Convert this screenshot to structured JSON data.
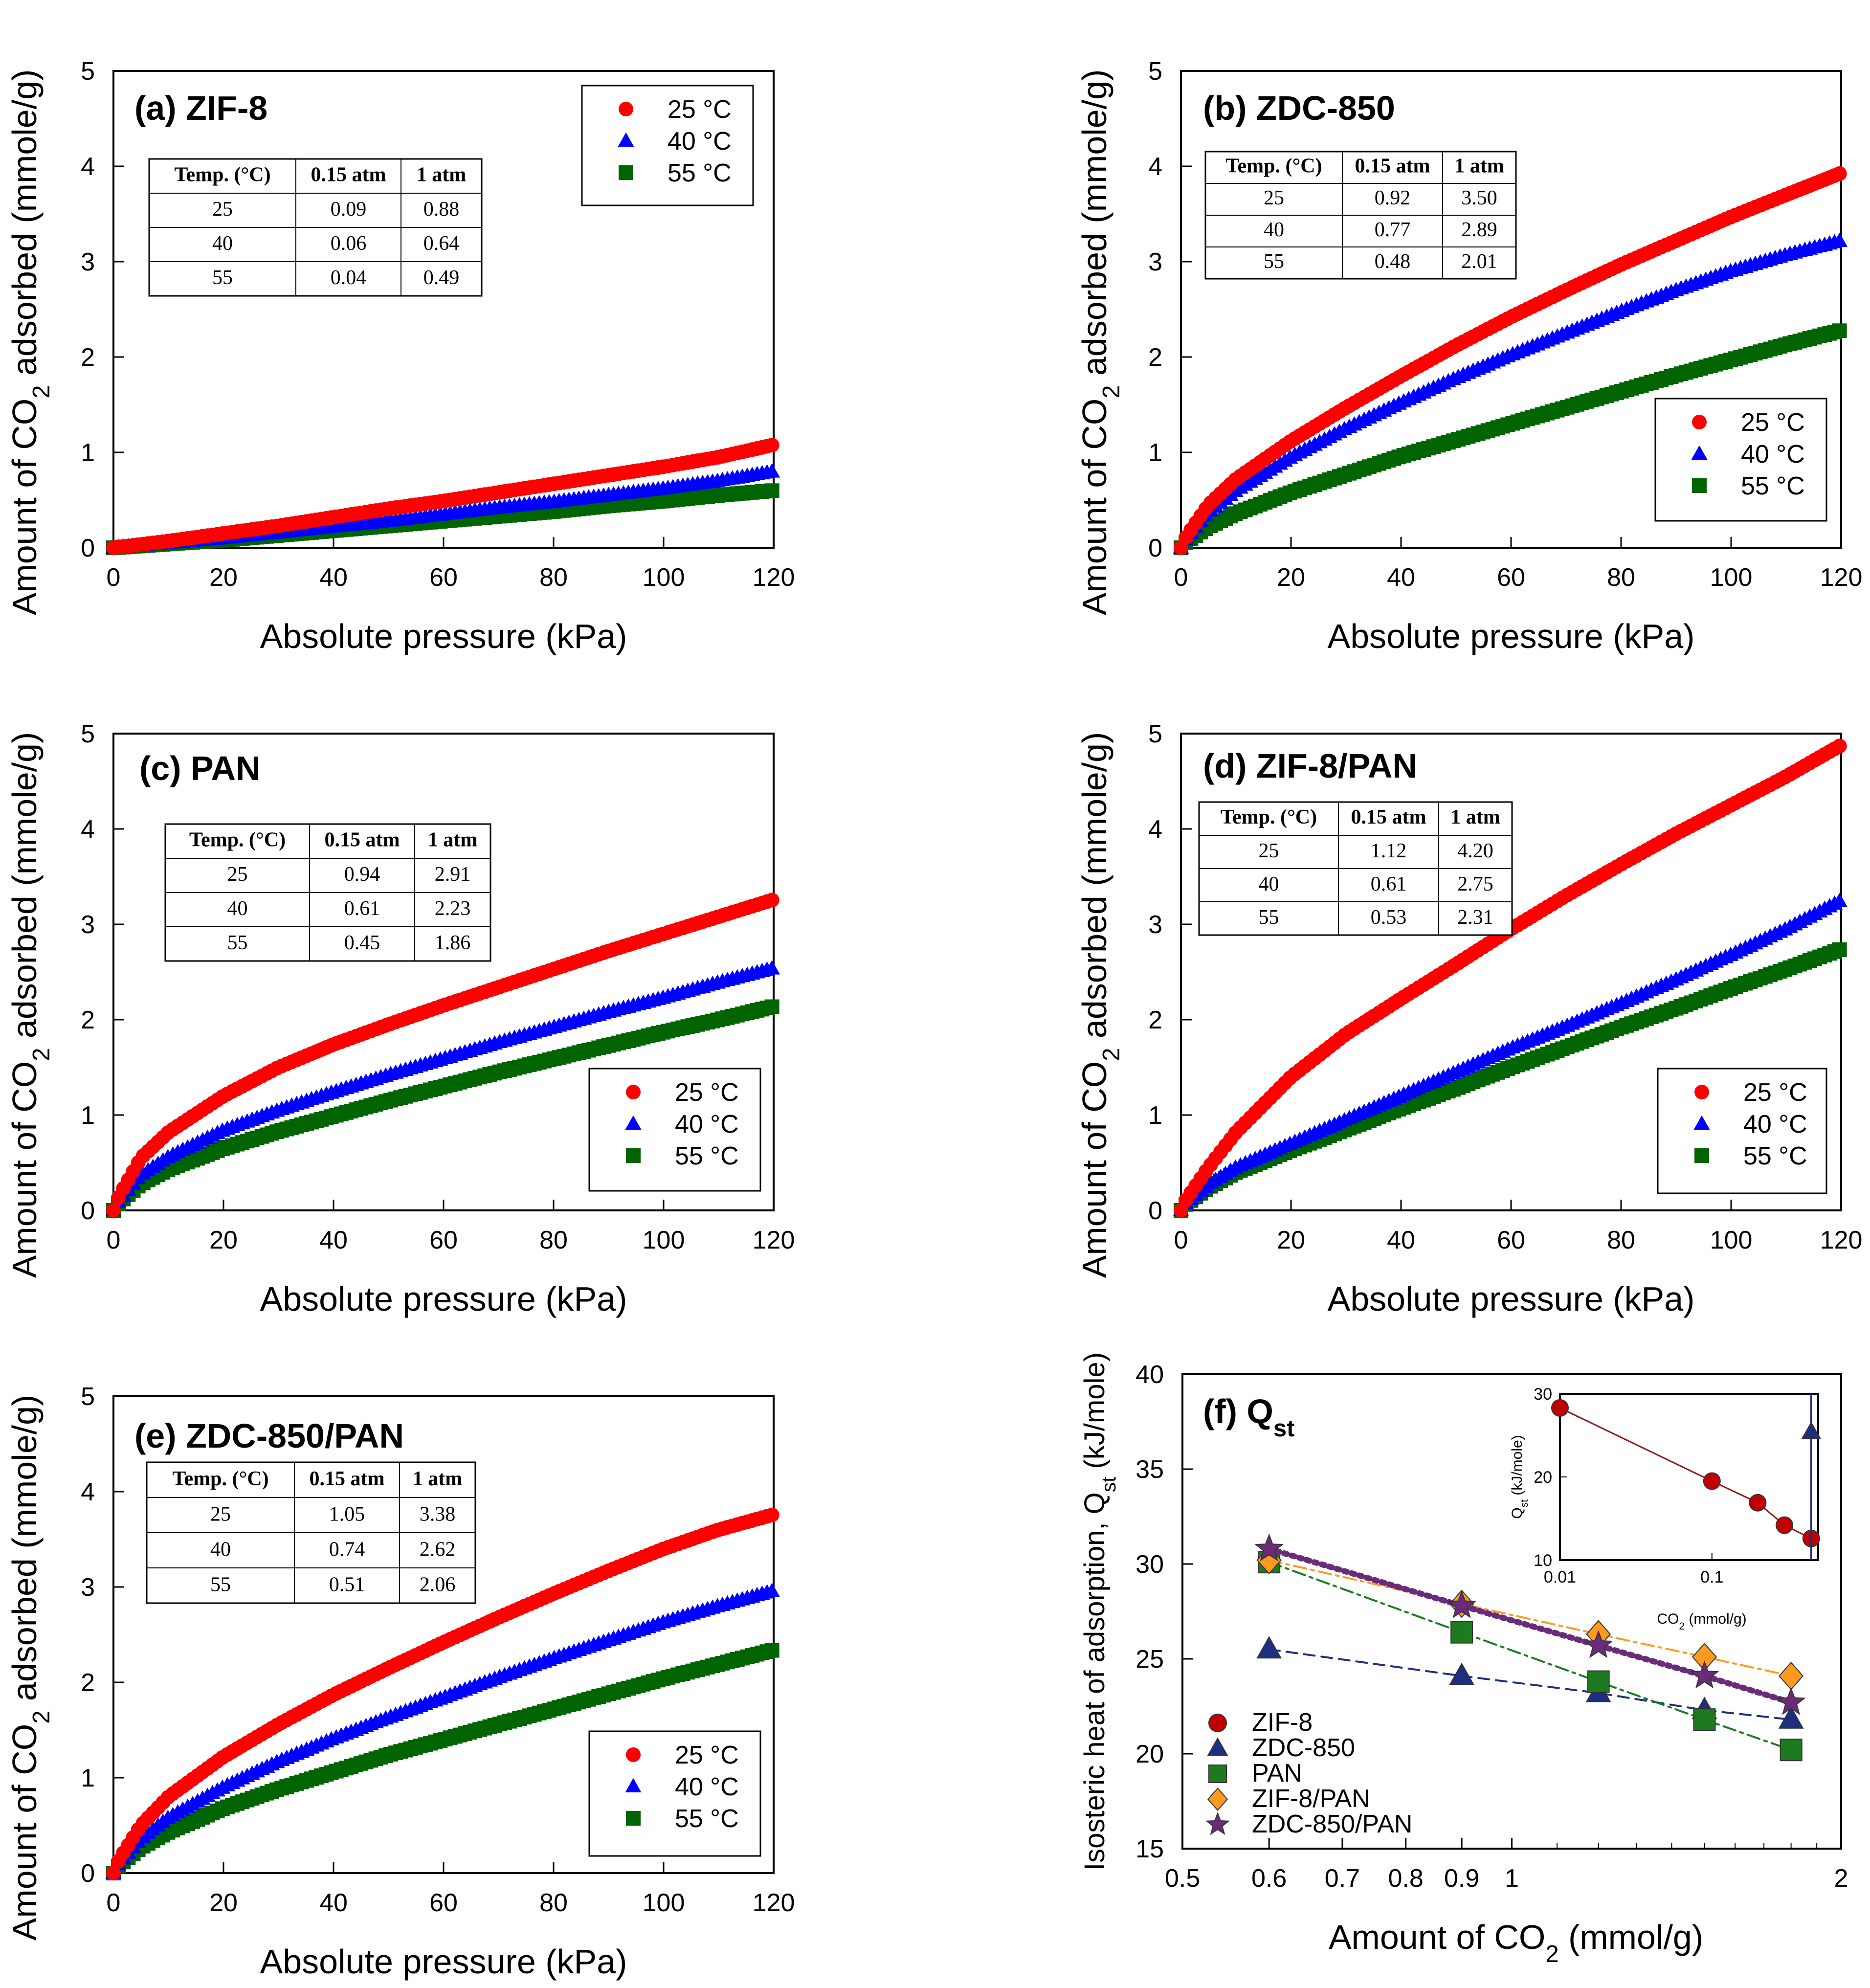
{
  "figure": {
    "legend_labels": [
      "25 °C",
      "40 °C",
      "55 °C"
    ],
    "colors": {
      "c25": "#ff0000",
      "c40": "#0000ff",
      "c55": "#006400"
    },
    "table_headers": [
      "Temp. (°C)",
      "0.15 atm",
      "1 atm"
    ],
    "x_ticks": [
      "0",
      "20",
      "40",
      "60",
      "80",
      "100",
      "120"
    ],
    "y_ticks": [
      "0",
      "1",
      "2",
      "3",
      "4",
      "5"
    ],
    "xlabel": "Absolute pressure (kPa)",
    "ylabel": "Amount of CO2 adsorbed (mmole/g)"
  },
  "chart_data": [
    {
      "id": "a",
      "type": "scatter",
      "title": "(a) ZIF-8",
      "xlabel": "Absolute pressure (kPa)",
      "ylabel": "Amount of CO2 adsorbed (mmole/g)",
      "xlim": [
        0,
        120
      ],
      "ylim": [
        0,
        5
      ],
      "legend_position": "top-right",
      "series": [
        {
          "name": "25 °C",
          "marker": "circle",
          "color": "#ff0000",
          "x": [
            0,
            10,
            20,
            30,
            40,
            50,
            60,
            70,
            80,
            90,
            100,
            110,
            120
          ],
          "y": [
            0,
            0.07,
            0.15,
            0.23,
            0.32,
            0.41,
            0.49,
            0.58,
            0.67,
            0.76,
            0.85,
            0.95,
            1.08
          ]
        },
        {
          "name": "40 °C",
          "marker": "triangle",
          "color": "#0000ff",
          "x": [
            0,
            10,
            20,
            30,
            40,
            50,
            60,
            70,
            80,
            90,
            100,
            110,
            120
          ],
          "y": [
            0,
            0.05,
            0.1,
            0.16,
            0.22,
            0.28,
            0.35,
            0.42,
            0.48,
            0.55,
            0.62,
            0.7,
            0.8
          ]
        },
        {
          "name": "55 °C",
          "marker": "square",
          "color": "#006400",
          "x": [
            0,
            10,
            20,
            30,
            40,
            50,
            60,
            70,
            80,
            90,
            100,
            110,
            120
          ],
          "y": [
            0,
            0.04,
            0.08,
            0.13,
            0.18,
            0.23,
            0.28,
            0.33,
            0.38,
            0.44,
            0.49,
            0.55,
            0.6
          ]
        }
      ],
      "table": [
        [
          "25",
          "0.09",
          "0.88"
        ],
        [
          "40",
          "0.06",
          "0.64"
        ],
        [
          "55",
          "0.04",
          "0.49"
        ]
      ]
    },
    {
      "id": "b",
      "type": "scatter",
      "title": "(b) ZDC-850",
      "xlabel": "Absolute pressure (kPa)",
      "ylabel": "Amount of CO2 adsorbed (mmole/g)",
      "xlim": [
        0,
        120
      ],
      "ylim": [
        0,
        5
      ],
      "legend_position": "bottom-right",
      "series": [
        {
          "name": "25 °C",
          "marker": "circle",
          "color": "#ff0000",
          "x": [
            0,
            1,
            5,
            10,
            20,
            30,
            40,
            50,
            60,
            70,
            80,
            90,
            100,
            110,
            120
          ],
          "y": [
            0,
            0.12,
            0.45,
            0.72,
            1.12,
            1.47,
            1.8,
            2.12,
            2.42,
            2.7,
            2.97,
            3.22,
            3.47,
            3.7,
            3.93
          ]
        },
        {
          "name": "40 °C",
          "marker": "triangle",
          "color": "#0000ff",
          "x": [
            0,
            1,
            5,
            10,
            20,
            30,
            40,
            50,
            60,
            70,
            80,
            90,
            100,
            110,
            120
          ],
          "y": [
            0,
            0.1,
            0.37,
            0.6,
            0.95,
            1.25,
            1.52,
            1.78,
            2.02,
            2.25,
            2.48,
            2.7,
            2.9,
            3.07,
            3.22
          ]
        },
        {
          "name": "55 °C",
          "marker": "square",
          "color": "#006400",
          "x": [
            0,
            1,
            5,
            10,
            20,
            30,
            40,
            50,
            60,
            70,
            80,
            90,
            100,
            110,
            120
          ],
          "y": [
            0,
            0.06,
            0.22,
            0.36,
            0.58,
            0.77,
            0.96,
            1.13,
            1.3,
            1.47,
            1.64,
            1.81,
            1.97,
            2.13,
            2.28
          ]
        }
      ],
      "table": [
        [
          "25",
          "0.92",
          "3.50"
        ],
        [
          "40",
          "0.77",
          "2.89"
        ],
        [
          "55",
          "0.48",
          "2.01"
        ]
      ]
    },
    {
      "id": "c",
      "type": "scatter",
      "title": "(c) PAN",
      "xlabel": "Absolute pressure (kPa)",
      "ylabel": "Amount of CO2 adsorbed (mmole/g)",
      "xlim": [
        0,
        120
      ],
      "ylim": [
        0,
        5
      ],
      "legend_position": "bottom-right",
      "series": [
        {
          "name": "25 °C",
          "marker": "circle",
          "color": "#ff0000",
          "x": [
            0,
            1,
            5,
            10,
            20,
            30,
            40,
            50,
            60,
            70,
            80,
            90,
            100,
            110,
            120
          ],
          "y": [
            0,
            0.15,
            0.55,
            0.82,
            1.2,
            1.5,
            1.74,
            1.95,
            2.15,
            2.34,
            2.53,
            2.72,
            2.9,
            3.08,
            3.26
          ]
        },
        {
          "name": "40 °C",
          "marker": "triangle",
          "color": "#0000ff",
          "x": [
            0,
            1,
            5,
            10,
            20,
            30,
            40,
            50,
            60,
            70,
            80,
            90,
            100,
            110,
            120
          ],
          "y": [
            0,
            0.1,
            0.37,
            0.56,
            0.84,
            1.05,
            1.24,
            1.42,
            1.59,
            1.76,
            1.92,
            2.08,
            2.23,
            2.39,
            2.54
          ]
        },
        {
          "name": "55 °C",
          "marker": "square",
          "color": "#006400",
          "x": [
            0,
            1,
            5,
            10,
            20,
            30,
            40,
            50,
            60,
            70,
            80,
            90,
            100,
            110,
            120
          ],
          "y": [
            0,
            0.08,
            0.28,
            0.43,
            0.65,
            0.83,
            0.99,
            1.15,
            1.3,
            1.45,
            1.59,
            1.73,
            1.87,
            2.0,
            2.14
          ]
        }
      ],
      "table": [
        [
          "25",
          "0.94",
          "2.91"
        ],
        [
          "40",
          "0.61",
          "2.23"
        ],
        [
          "55",
          "0.45",
          "1.86"
        ]
      ]
    },
    {
      "id": "d",
      "type": "scatter",
      "title": "(d) ZIF-8/PAN",
      "xlabel": "Absolute pressure (kPa)",
      "ylabel": "Amount of CO2 adsorbed (mmole/g)",
      "xlim": [
        0,
        120
      ],
      "ylim": [
        0,
        5
      ],
      "legend_position": "bottom-right",
      "series": [
        {
          "name": "25 °C",
          "marker": "circle",
          "color": "#ff0000",
          "x": [
            0,
            1,
            5,
            10,
            20,
            30,
            40,
            50,
            60,
            70,
            80,
            90,
            100,
            110,
            120
          ],
          "y": [
            0,
            0.12,
            0.45,
            0.82,
            1.4,
            1.85,
            2.22,
            2.58,
            2.95,
            3.3,
            3.63,
            3.95,
            4.25,
            4.55,
            4.88
          ]
        },
        {
          "name": "40 °C",
          "marker": "triangle",
          "color": "#0000ff",
          "x": [
            0,
            1,
            5,
            10,
            20,
            30,
            40,
            50,
            60,
            70,
            80,
            90,
            100,
            110,
            120
          ],
          "y": [
            0,
            0.08,
            0.27,
            0.45,
            0.7,
            0.95,
            1.2,
            1.45,
            1.7,
            1.93,
            2.17,
            2.42,
            2.68,
            2.95,
            3.25
          ]
        },
        {
          "name": "55 °C",
          "marker": "square",
          "color": "#006400",
          "x": [
            0,
            1,
            5,
            10,
            20,
            30,
            40,
            50,
            60,
            70,
            80,
            90,
            100,
            110,
            120
          ],
          "y": [
            0,
            0.07,
            0.24,
            0.4,
            0.63,
            0.85,
            1.07,
            1.28,
            1.5,
            1.71,
            1.92,
            2.12,
            2.33,
            2.53,
            2.74
          ]
        }
      ],
      "table": [
        [
          "25",
          "1.12",
          "4.20"
        ],
        [
          "40",
          "0.61",
          "2.75"
        ],
        [
          "55",
          "0.53",
          "2.31"
        ]
      ]
    },
    {
      "id": "e",
      "type": "scatter",
      "title": "(e) ZDC-850/PAN",
      "xlabel": "Absolute pressure (kPa)",
      "ylabel": "Amount of CO2 adsorbed (mmole/g)",
      "xlim": [
        0,
        120
      ],
      "ylim": [
        0,
        5
      ],
      "legend_position": "bottom-right",
      "series": [
        {
          "name": "25 °C",
          "marker": "circle",
          "color": "#ff0000",
          "x": [
            0,
            1,
            5,
            10,
            20,
            30,
            40,
            50,
            60,
            70,
            80,
            90,
            100,
            110,
            120
          ],
          "y": [
            0,
            0.14,
            0.5,
            0.8,
            1.22,
            1.56,
            1.87,
            2.15,
            2.42,
            2.68,
            2.93,
            3.17,
            3.4,
            3.6,
            3.76
          ]
        },
        {
          "name": "40 °C",
          "marker": "triangle",
          "color": "#0000ff",
          "x": [
            0,
            1,
            5,
            10,
            20,
            30,
            40,
            50,
            60,
            70,
            80,
            90,
            100,
            110,
            120
          ],
          "y": [
            0,
            0.1,
            0.36,
            0.58,
            0.9,
            1.17,
            1.41,
            1.63,
            1.84,
            2.05,
            2.25,
            2.44,
            2.63,
            2.8,
            2.96
          ]
        },
        {
          "name": "55 °C",
          "marker": "square",
          "color": "#006400",
          "x": [
            0,
            1,
            5,
            10,
            20,
            30,
            40,
            50,
            60,
            70,
            80,
            90,
            100,
            110,
            120
          ],
          "y": [
            0,
            0.08,
            0.27,
            0.43,
            0.68,
            0.88,
            1.06,
            1.24,
            1.4,
            1.56,
            1.72,
            1.88,
            2.04,
            2.19,
            2.34
          ]
        }
      ],
      "table": [
        [
          "25",
          "1.05",
          "3.38"
        ],
        [
          "40",
          "0.74",
          "2.62"
        ],
        [
          "55",
          "0.51",
          "2.06"
        ]
      ]
    },
    {
      "id": "f",
      "type": "scatter",
      "title": "(f) Q",
      "title_sub": "st",
      "xlabel": "Amount of CO",
      "xlabel_sub": "2",
      "xlabel_tail": " (mmol/g)",
      "ylabel": "Isosteric heat of adsorption, Q",
      "ylabel_sub": "st",
      "ylabel_tail": " (kJ/mole)",
      "xscale": "log",
      "xlim": [
        0.5,
        2
      ],
      "ylim": [
        15,
        40
      ],
      "x_ticks": [
        "0.5",
        "0.6",
        "0.7",
        "0.8",
        "0.9",
        "1",
        "2"
      ],
      "x_tick_values": [
        0.5,
        0.6,
        0.7,
        0.8,
        0.9,
        1,
        2
      ],
      "y_ticks": [
        "15",
        "20",
        "25",
        "30",
        "35",
        "40"
      ],
      "legend_position": "bottom-left",
      "series": [
        {
          "name": "ZIF-8",
          "marker": "circle",
          "color": "#c00000",
          "x": [],
          "y": []
        },
        {
          "name": "ZDC-850",
          "marker": "triangle",
          "color": "#1f2f7f",
          "x": [
            0.6,
            0.9,
            1.2,
            1.5,
            1.8
          ],
          "y": [
            25.5,
            24.1,
            23.2,
            22.3,
            21.8
          ]
        },
        {
          "name": "PAN",
          "marker": "square",
          "color": "#1e7a1e",
          "x": [
            0.6,
            0.9,
            1.2,
            1.5,
            1.8
          ],
          "y": [
            30.1,
            26.4,
            23.8,
            21.8,
            20.2
          ]
        },
        {
          "name": "ZIF-8/PAN",
          "marker": "diamond",
          "color": "#ff9a20",
          "x": [
            0.6,
            0.9,
            1.2,
            1.5,
            1.8
          ],
          "y": [
            30.2,
            27.9,
            26.3,
            25.1,
            24.1
          ]
        },
        {
          "name": "ZDC-850/PAN",
          "marker": "star",
          "color": "#6a2c7a",
          "x": [
            0.6,
            0.9,
            1.2,
            1.5,
            1.8
          ],
          "y": [
            30.8,
            27.8,
            25.7,
            24.1,
            22.7
          ]
        }
      ],
      "inset": {
        "xscale": "log",
        "xlim": [
          0.01,
          0.5
        ],
        "ylim": [
          10,
          30
        ],
        "x_ticks": [
          "0.01",
          "0.1"
        ],
        "y_ticks": [
          "10",
          "20",
          "30"
        ],
        "xlabel": "CO",
        "xlabel_sub": "2",
        "xlabel_tail": " (mmol/g)",
        "ylabel": "Q",
        "ylabel_sub": "st",
        "ylabel_tail": " (kJ/mole)",
        "series": [
          {
            "name": "ZIF-8",
            "marker": "circle",
            "color": "#c00000",
            "x": [
              0.01,
              0.1,
              0.2,
              0.3,
              0.45
            ],
            "y": [
              28.3,
              19.5,
              16.9,
              14.2,
              12.6
            ]
          },
          {
            "name": "ZDC-850",
            "marker": "triangle",
            "color": "#1f2f7f",
            "x": [
              0.45
            ],
            "y": [
              25.4
            ]
          }
        ]
      }
    }
  ]
}
